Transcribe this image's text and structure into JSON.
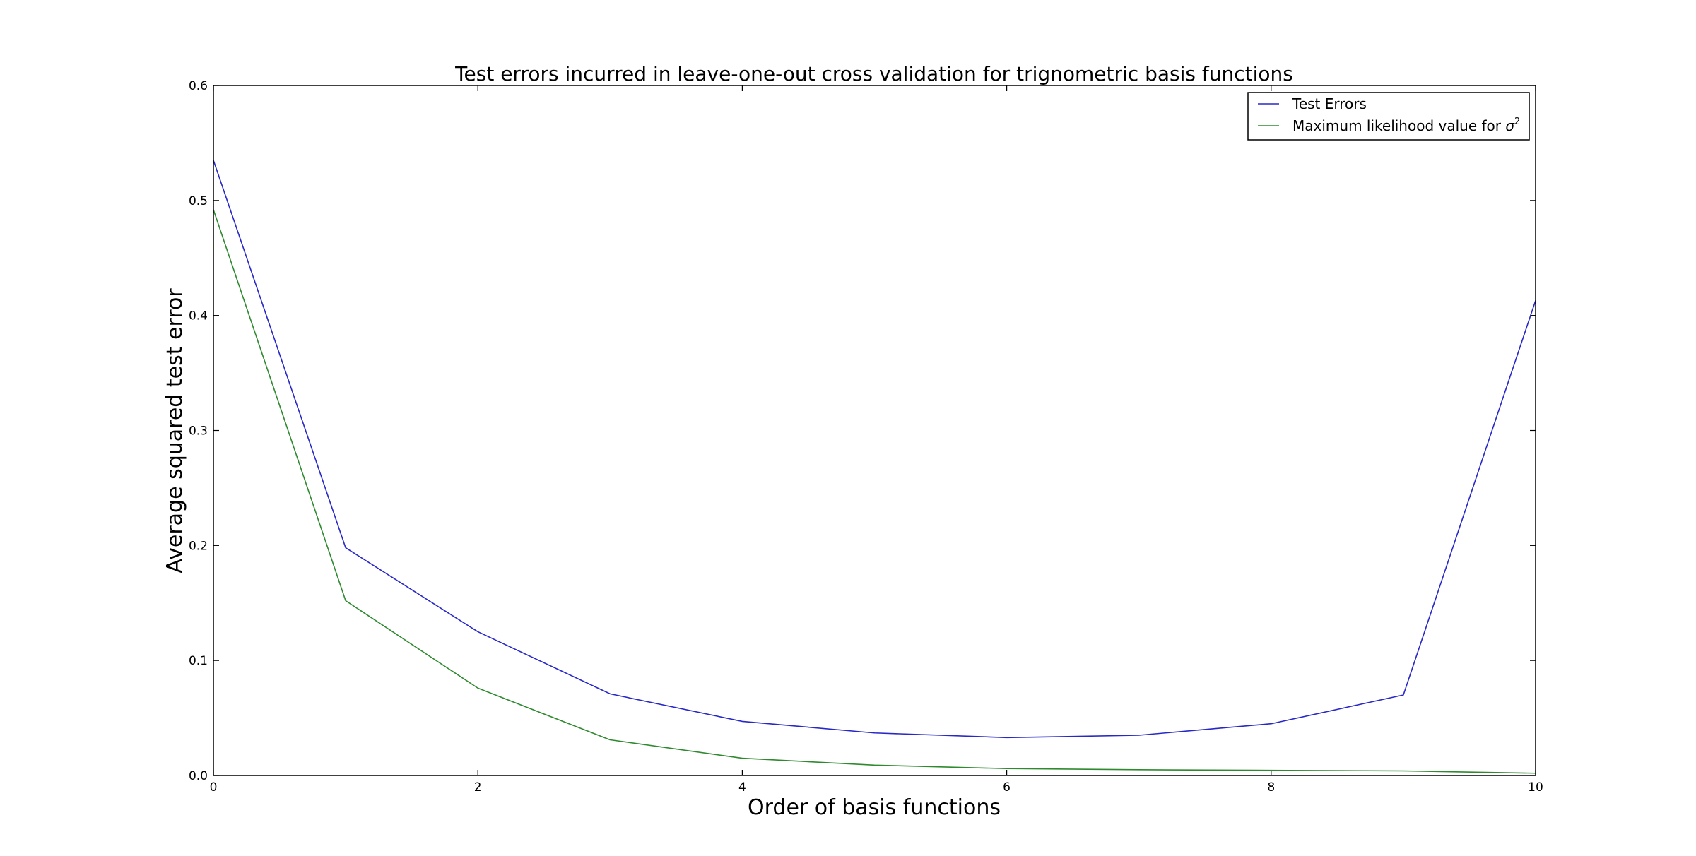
{
  "chart_data": {
    "type": "line",
    "title": "Test errors incurred in leave-one-out cross validation for trignometric basis functions",
    "xlabel": "Order of basis functions",
    "ylabel": "Average squared test error",
    "xlim": [
      0,
      10
    ],
    "ylim": [
      0,
      0.6
    ],
    "xticks": [
      "0",
      "2",
      "4",
      "6",
      "8",
      "10"
    ],
    "yticks": [
      "0.0",
      "0.1",
      "0.2",
      "0.3",
      "0.4",
      "0.5",
      "0.6"
    ],
    "x": [
      0,
      1,
      2,
      3,
      4,
      5,
      6,
      7,
      8,
      9,
      10
    ],
    "legend_position": "top-right",
    "grid": false,
    "series": [
      {
        "name": "Test Errors",
        "color": "#2828c8",
        "values": [
          0.535,
          0.198,
          0.125,
          0.071,
          0.047,
          0.037,
          0.033,
          0.035,
          0.045,
          0.07,
          0.413
        ]
      },
      {
        "name": "Maximum likelihood value for σ²",
        "name_prefix": "Maximum likelihood value for ",
        "name_math": "σ",
        "name_sup": "2",
        "color": "#2f8a2f",
        "values": [
          0.492,
          0.152,
          0.076,
          0.031,
          0.015,
          0.009,
          0.006,
          0.005,
          0.0045,
          0.004,
          0.002
        ]
      }
    ]
  }
}
